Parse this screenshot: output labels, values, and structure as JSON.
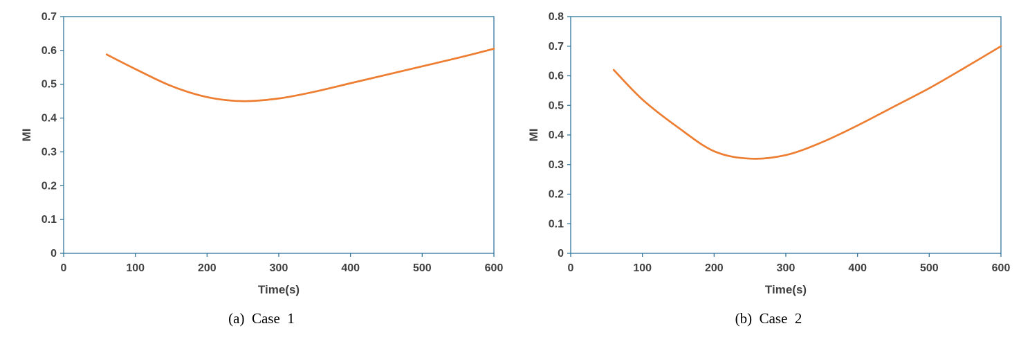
{
  "page": {
    "background": "#ffffff"
  },
  "chart_data": [
    {
      "type": "line",
      "title": "",
      "xlabel": "Time(s)",
      "ylabel": "MI",
      "caption": "(a)  Case  1",
      "xlim": [
        0,
        600
      ],
      "ylim": [
        0,
        0.7
      ],
      "x_ticks": [
        0,
        100,
        200,
        300,
        400,
        500,
        600
      ],
      "y_tick_step": 0.1,
      "grid": false,
      "legend": "none",
      "line_color": "#ED7D31",
      "border_color": "#31759B",
      "text_color": "#404040",
      "series": [
        {
          "name": "MI",
          "x": [
            60,
            100,
            150,
            200,
            250,
            300,
            350,
            400,
            450,
            500,
            550,
            600
          ],
          "y": [
            0.588,
            0.545,
            0.495,
            0.462,
            0.45,
            0.458,
            0.478,
            0.503,
            0.528,
            0.553,
            0.578,
            0.605
          ]
        }
      ]
    },
    {
      "type": "line",
      "title": "",
      "xlabel": "Time(s)",
      "ylabel": "MI",
      "caption": "(b)  Case  2",
      "xlim": [
        0,
        600
      ],
      "ylim": [
        0,
        0.8
      ],
      "x_ticks": [
        0,
        100,
        200,
        300,
        400,
        500,
        600
      ],
      "y_tick_step": 0.1,
      "grid": false,
      "legend": "none",
      "line_color": "#ED7D31",
      "border_color": "#31759B",
      "text_color": "#404040",
      "series": [
        {
          "name": "MI",
          "x": [
            60,
            100,
            150,
            200,
            250,
            300,
            350,
            400,
            450,
            500,
            550,
            600
          ],
          "y": [
            0.62,
            0.52,
            0.425,
            0.345,
            0.32,
            0.332,
            0.375,
            0.432,
            0.495,
            0.558,
            0.628,
            0.7
          ]
        }
      ]
    }
  ]
}
